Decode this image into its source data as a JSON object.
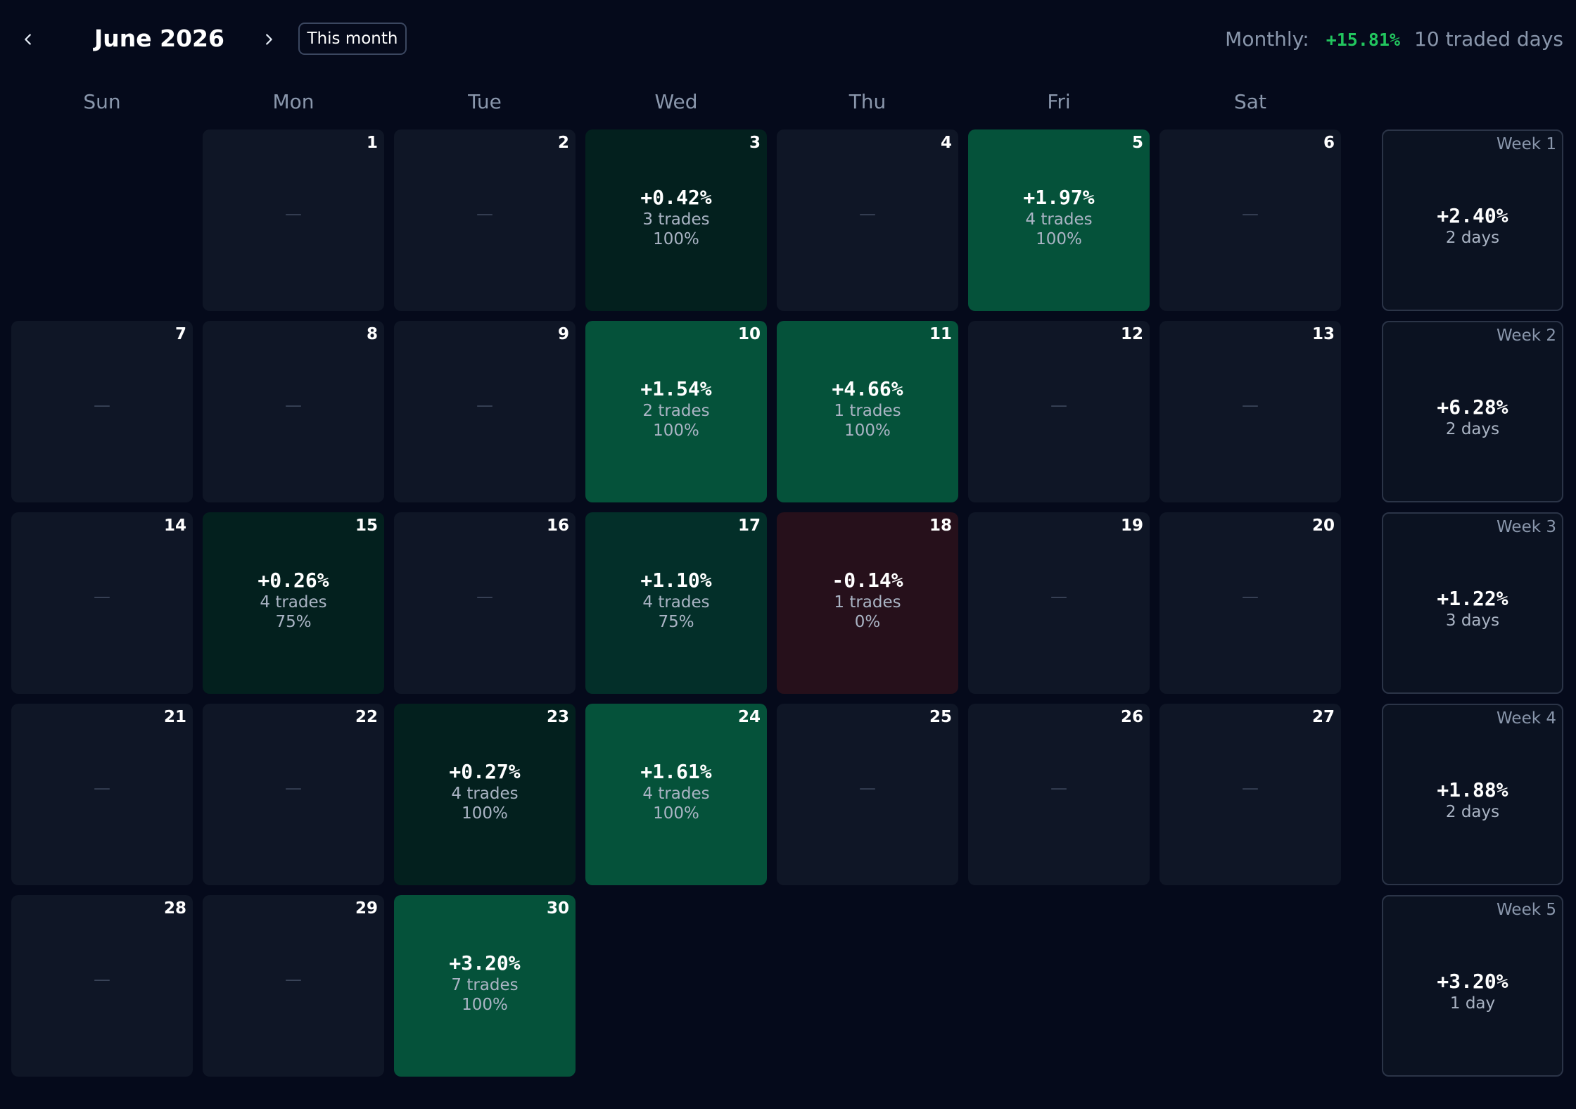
{
  "header": {
    "month_title": "June 2026",
    "this_month_label": "This month",
    "monthly_label": "Monthly:",
    "monthly_pct": "+15.81%",
    "traded_days": "10 traded days"
  },
  "weekdays": [
    "Sun",
    "Mon",
    "Tue",
    "Wed",
    "Thu",
    "Fri",
    "Sat"
  ],
  "empty_marker": "—",
  "days": [
    {
      "day": "1"
    },
    {
      "day": "2"
    },
    {
      "day": "3",
      "pnl": "+0.42%",
      "trades": "3 trades",
      "win": "100%",
      "tone": "dim"
    },
    {
      "day": "4"
    },
    {
      "day": "5",
      "pnl": "+1.97%",
      "trades": "4 trades",
      "win": "100%",
      "tone": "bright"
    },
    {
      "day": "6"
    },
    {
      "day": "7"
    },
    {
      "day": "8"
    },
    {
      "day": "9"
    },
    {
      "day": "10",
      "pnl": "+1.54%",
      "trades": "2 trades",
      "win": "100%",
      "tone": "bright"
    },
    {
      "day": "11",
      "pnl": "+4.66%",
      "trades": "1 trades",
      "win": "100%",
      "tone": "bright"
    },
    {
      "day": "12"
    },
    {
      "day": "13"
    },
    {
      "day": "14"
    },
    {
      "day": "15",
      "pnl": "+0.26%",
      "trades": "4 trades",
      "win": "75%",
      "tone": "dim"
    },
    {
      "day": "16"
    },
    {
      "day": "17",
      "pnl": "+1.10%",
      "trades": "4 trades",
      "win": "75%",
      "tone": "mid"
    },
    {
      "day": "18",
      "pnl": "-0.14%",
      "trades": "1 trades",
      "win": "0%",
      "tone": "loss"
    },
    {
      "day": "19"
    },
    {
      "day": "20"
    },
    {
      "day": "21"
    },
    {
      "day": "22"
    },
    {
      "day": "23",
      "pnl": "+0.27%",
      "trades": "4 trades",
      "win": "100%",
      "tone": "dim"
    },
    {
      "day": "24",
      "pnl": "+1.61%",
      "trades": "4 trades",
      "win": "100%",
      "tone": "bright"
    },
    {
      "day": "25"
    },
    {
      "day": "26"
    },
    {
      "day": "27"
    },
    {
      "day": "28"
    },
    {
      "day": "29"
    },
    {
      "day": "30",
      "pnl": "+3.20%",
      "trades": "7 trades",
      "win": "100%",
      "tone": "bright"
    }
  ],
  "weeks": [
    {
      "label": "Week 1",
      "pnl": "+2.40%",
      "days": "2 days"
    },
    {
      "label": "Week 2",
      "pnl": "+6.28%",
      "days": "2 days"
    },
    {
      "label": "Week 3",
      "pnl": "+1.22%",
      "days": "3 days"
    },
    {
      "label": "Week 4",
      "pnl": "+1.88%",
      "days": "2 days"
    },
    {
      "label": "Week 5",
      "pnl": "+3.20%",
      "days": "1 day"
    }
  ],
  "colors": {
    "background": "#050a1b",
    "cell_empty": "#0f1626",
    "cell_dim_gain": "#03201e",
    "cell_mid_gain": "#032f29",
    "cell_bright_gain": "#05523a",
    "cell_loss": "#26101b",
    "positive_text": "#22c55e"
  }
}
